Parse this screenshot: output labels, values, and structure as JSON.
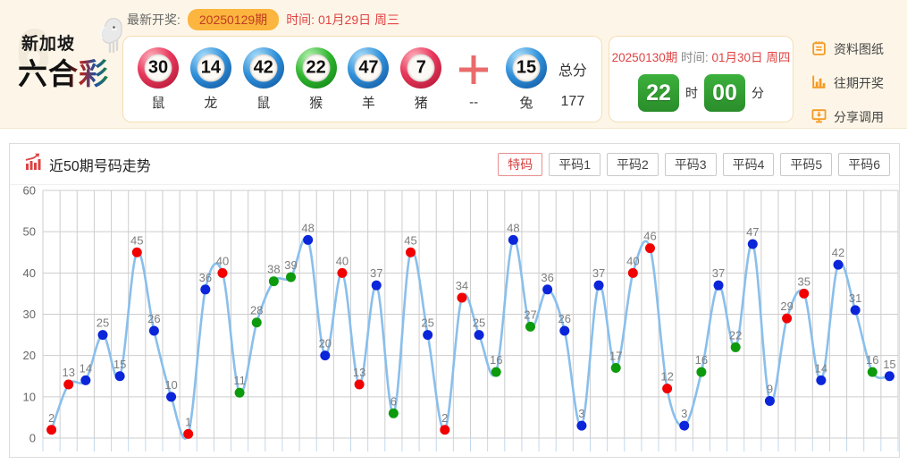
{
  "banner": {
    "logo": {
      "line1": "新加坡",
      "line2": "六合彩"
    },
    "latest_label": "最新开奖:",
    "issue_pill": "20250129期",
    "time_label": "时间:",
    "time_value": "01月29日 周三",
    "balls": [
      {
        "num": "30",
        "zodiac": "鼠",
        "color": "red"
      },
      {
        "num": "14",
        "zodiac": "龙",
        "color": "blue"
      },
      {
        "num": "42",
        "zodiac": "鼠",
        "color": "blue"
      },
      {
        "num": "22",
        "zodiac": "猴",
        "color": "green"
      },
      {
        "num": "47",
        "zodiac": "羊",
        "color": "blue"
      },
      {
        "num": "7",
        "zodiac": "猪",
        "color": "red"
      }
    ],
    "plus_sub": "--",
    "special_ball": {
      "num": "15",
      "zodiac": "兔",
      "color": "blue"
    },
    "total_label": "总分",
    "total_value": "177",
    "next": {
      "issue": "20250130期",
      "time_label": "时间:",
      "time_value": "01月30日 周四",
      "hour": "22",
      "hour_unit": "时",
      "minute": "00",
      "minute_unit": "分"
    },
    "links": [
      {
        "label": "资料图纸",
        "icon": "notebook-icon"
      },
      {
        "label": "往期开奖",
        "icon": "bar-chart-icon"
      },
      {
        "label": "分享调用",
        "icon": "share-monitor-icon"
      }
    ]
  },
  "chart_panel": {
    "title": "近50期号码走势",
    "tabs": [
      {
        "label": "特码",
        "active": true
      },
      {
        "label": "平码1",
        "active": false
      },
      {
        "label": "平码2",
        "active": false
      },
      {
        "label": "平码3",
        "active": false
      },
      {
        "label": "平码4",
        "active": false
      },
      {
        "label": "平码5",
        "active": false
      },
      {
        "label": "平码6",
        "active": false
      }
    ]
  },
  "chart_data": {
    "type": "line",
    "title": "近50期号码走势",
    "ylim": [
      0,
      60
    ],
    "yticks": [
      0,
      10,
      20,
      30,
      40,
      50,
      60
    ],
    "grid": true,
    "x_count": 50,
    "values": [
      2,
      13,
      14,
      25,
      15,
      45,
      26,
      10,
      1,
      36,
      40,
      11,
      28,
      38,
      39,
      48,
      20,
      40,
      13,
      37,
      6,
      45,
      25,
      2,
      34,
      25,
      16,
      48,
      27,
      36,
      26,
      3,
      37,
      17,
      40,
      46,
      12,
      3,
      16,
      37,
      22,
      47,
      9,
      29,
      35,
      14,
      42,
      31,
      16,
      15
    ],
    "point_colors": [
      "red",
      "red",
      "blue",
      "blue",
      "blue",
      "red",
      "blue",
      "blue",
      "red",
      "blue",
      "red",
      "green",
      "green",
      "green",
      "green",
      "blue",
      "blue",
      "red",
      "red",
      "blue",
      "green",
      "red",
      "blue",
      "red",
      "red",
      "blue",
      "green",
      "blue",
      "green",
      "blue",
      "blue",
      "blue",
      "blue",
      "green",
      "red",
      "red",
      "red",
      "blue",
      "green",
      "blue",
      "green",
      "blue",
      "blue",
      "red",
      "red",
      "blue",
      "blue",
      "blue",
      "green",
      "blue"
    ],
    "line_color": "#89bfec",
    "grid_color": "#cdcdcd",
    "tick_color": "#c2d8ec",
    "label_color": "#7d7d7d",
    "axis_label_color": "#666666",
    "dot_colors": {
      "red": "#f20000",
      "blue": "#0b25da",
      "green": "#0d9b0d"
    }
  }
}
